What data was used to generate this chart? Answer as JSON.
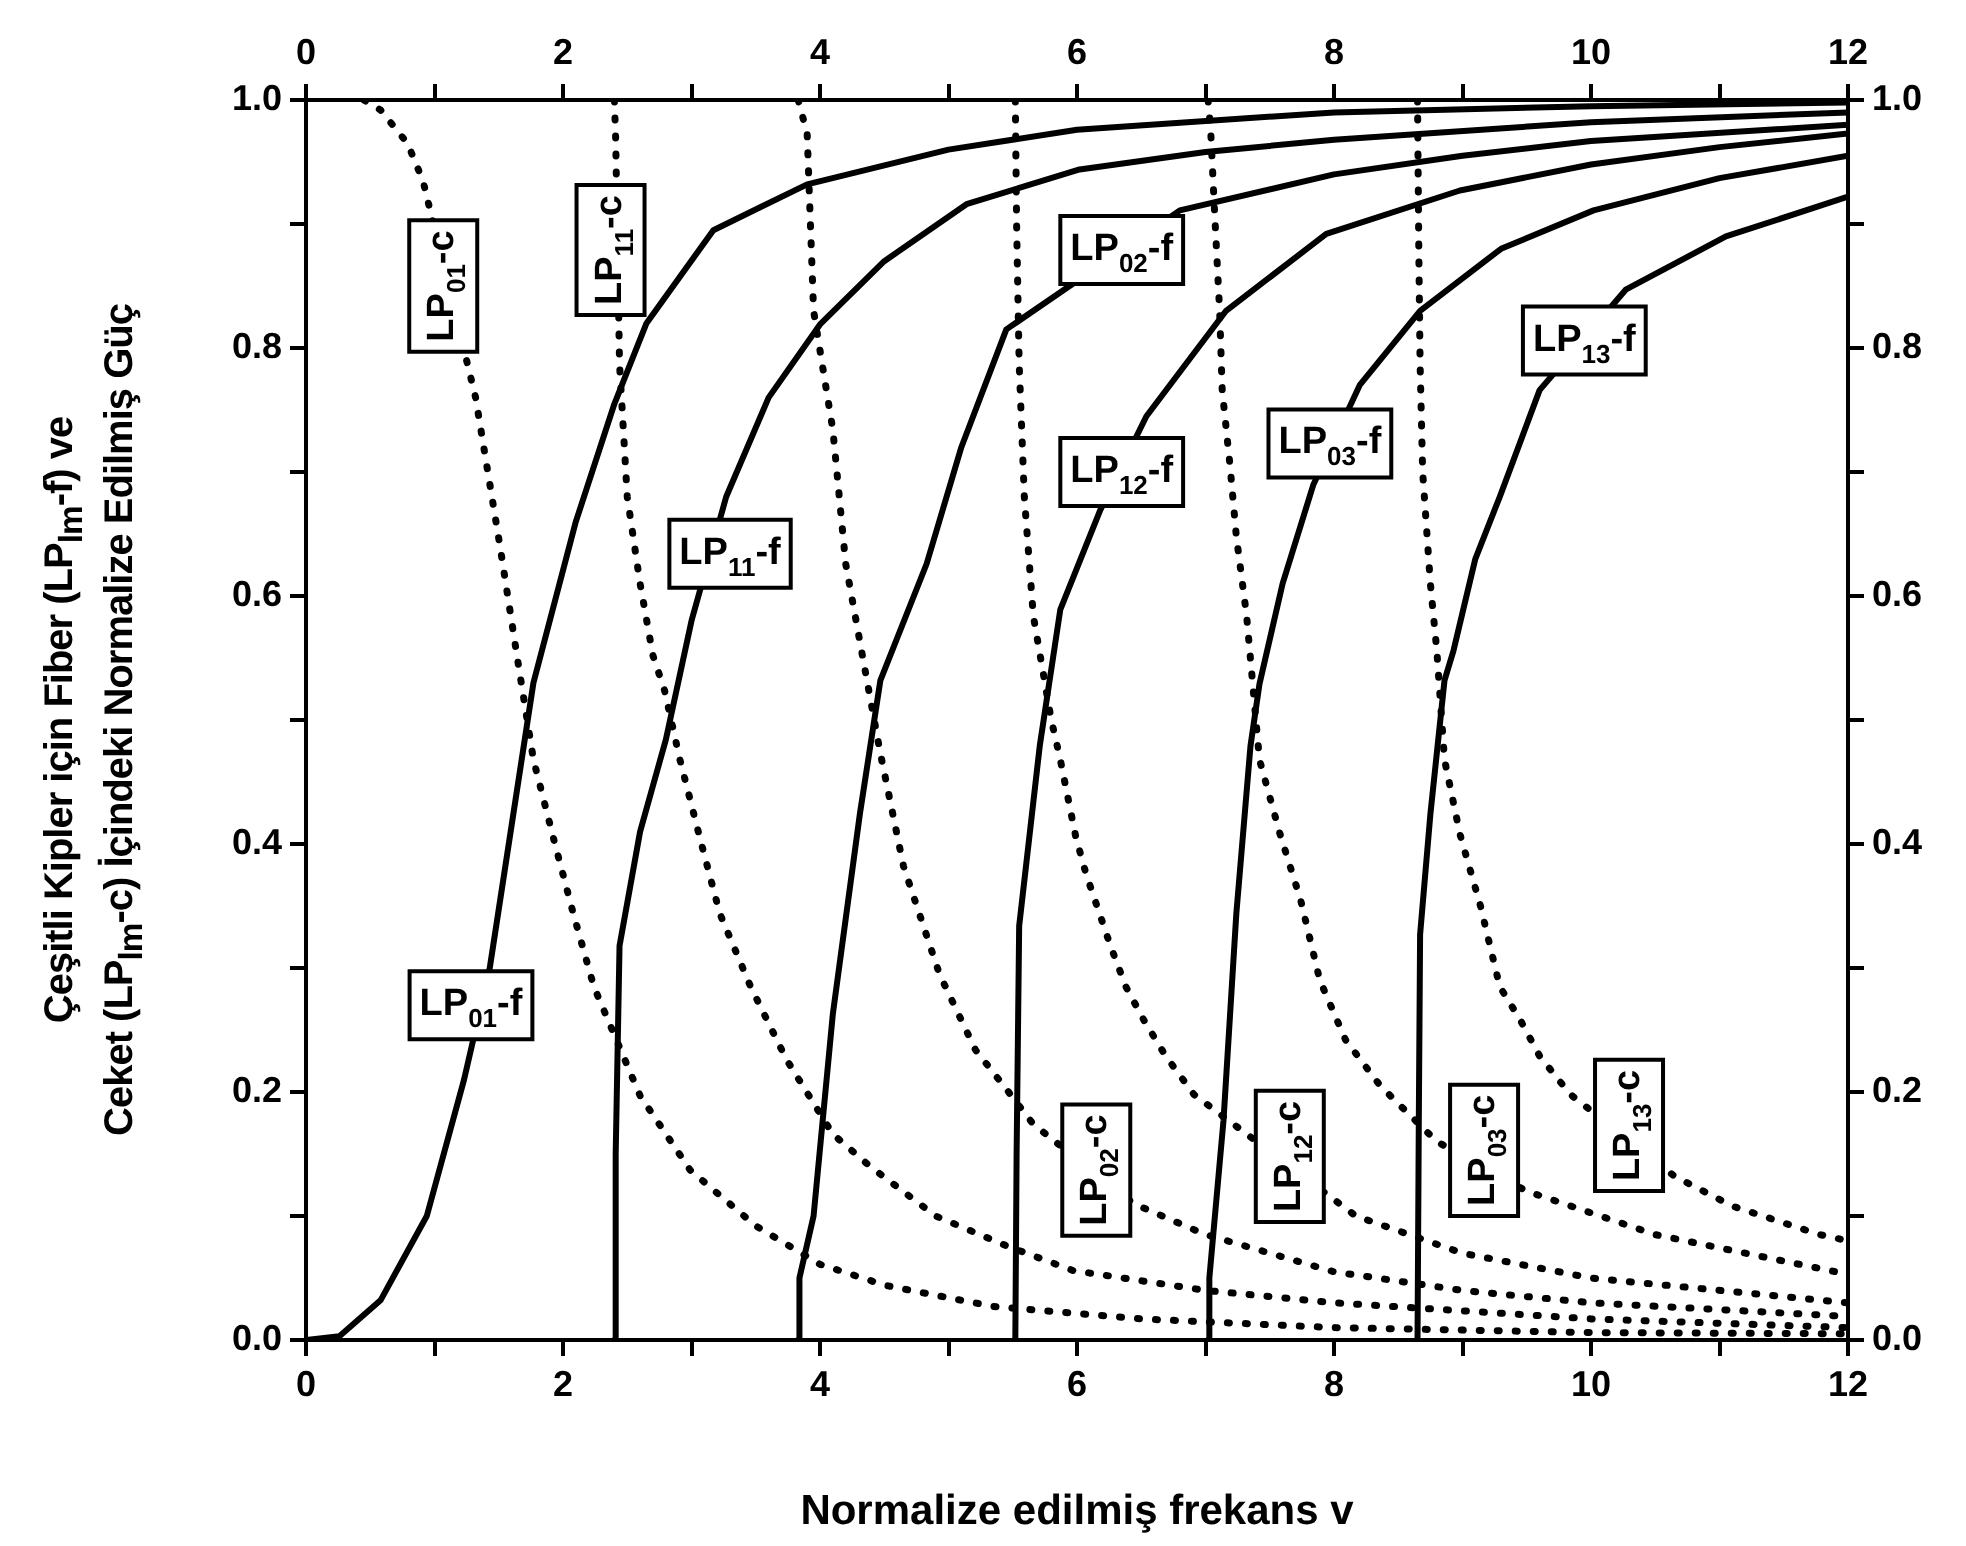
{
  "chart_data": {
    "type": "line",
    "xlabel": "Normalize edilmiş frekans v",
    "ylabel": "Çeşitli Kipler için Fiber (LP$_{lm}$-f) ve\nCeket (LP$_{lm}$-c) İçindeki Normalize Edilmiş Güç",
    "xlim": [
      0,
      12
    ],
    "xticks": [
      0,
      {
        "value": 1,
        "label": null
      },
      2,
      {
        "value": 3,
        "label": null
      },
      4,
      {
        "value": 5,
        "label": null
      },
      6,
      {
        "value": 7,
        "label": null
      },
      8,
      {
        "value": 9,
        "label": null
      },
      10,
      {
        "value": 11,
        "label": null
      },
      12
    ],
    "x2lim": [
      0,
      12
    ],
    "x2ticks": [
      0,
      {
        "value": 1,
        "label": null
      },
      2,
      {
        "value": 3,
        "label": null
      },
      4,
      {
        "value": 5,
        "label": null
      },
      6,
      {
        "value": 7,
        "label": null
      },
      8,
      {
        "value": 9,
        "label": null
      },
      10,
      {
        "value": 11,
        "label": null
      },
      12
    ],
    "ylim": [
      0,
      1
    ],
    "yticks": [
      {
        "value": 0,
        "label": "0.0"
      },
      {
        "value": 0.1,
        "label": null
      },
      0.2,
      {
        "value": 0.3,
        "label": null
      },
      0.4,
      {
        "value": 0.5,
        "label": null
      },
      0.6,
      {
        "value": 0.7,
        "label": null
      },
      0.8,
      {
        "value": 0.9,
        "label": null
      },
      {
        "value": 1,
        "label": "1.0"
      }
    ],
    "y2lim": [
      0,
      1
    ],
    "y2ticks": [
      {
        "value": 0,
        "label": "0.0"
      },
      {
        "value": 0.1,
        "label": null
      },
      0.2,
      {
        "value": 0.3,
        "label": null
      },
      0.4,
      {
        "value": 0.5,
        "label": null
      },
      0.6,
      {
        "value": 0.7,
        "label": null
      },
      0.8,
      {
        "value": 0.9,
        "label": null
      },
      {
        "value": 1,
        "label": "1.0"
      }
    ],
    "legend": false,
    "marker": "none",
    "series": [
      {
        "color": "#000000",
        "line_style": "solid",
        "x": [
          0,
          0.26,
          0.58,
          0.94,
          1.23,
          1.43,
          1.77,
          2.1,
          2.4,
          2.65,
          3.17,
          3.9,
          5,
          6,
          8,
          10,
          12
        ],
        "values": [
          0,
          0.003,
          0.032,
          0.1,
          0.21,
          0.3,
          0.53,
          0.66,
          0.755,
          0.82,
          0.895,
          0.932,
          0.96,
          0.976,
          0.99,
          0.995,
          0.998
        ]
      },
      {
        "color": "#000000",
        "line_style": "dotted",
        "x": [
          0.45,
          0.58,
          0.79,
          0.91,
          1.32,
          1.51,
          1.64,
          1.77,
          1.93,
          2.08,
          2.24,
          2.6,
          2.99,
          3.5,
          4,
          4.51,
          5.35,
          6.5,
          8,
          10,
          12
        ],
        "values": [
          1,
          0.992,
          0.965,
          0.935,
          0.76,
          0.64,
          0.553,
          0.468,
          0.403,
          0.344,
          0.285,
          0.197,
          0.137,
          0.092,
          0.061,
          0.044,
          0.027,
          0.017,
          0.01,
          0.006,
          0.005
        ]
      },
      {
        "color": "#000000",
        "line_style": "solid",
        "x": [
          2.4,
          2.41,
          2.44,
          2.6,
          2.8,
          3,
          3.27,
          3.6,
          4,
          4.5,
          5.14,
          6.02,
          7,
          8,
          10,
          12
        ],
        "values": [
          0,
          0.15,
          0.318,
          0.41,
          0.484,
          0.58,
          0.68,
          0.76,
          0.819,
          0.87,
          0.916,
          0.944,
          0.958,
          0.968,
          0.982,
          0.99
        ]
      },
      {
        "color": "#000000",
        "line_style": "dotted",
        "x": [
          2.4,
          2.41,
          2.44,
          2.5,
          2.6,
          2.7,
          2.79,
          2.91,
          3.07,
          3.22,
          3.46,
          3.74,
          4.1,
          4.39,
          4.9,
          5.45,
          5.97,
          7,
          8,
          10,
          12
        ],
        "values": [
          1,
          0.968,
          0.787,
          0.68,
          0.61,
          0.552,
          0.524,
          0.468,
          0.403,
          0.344,
          0.285,
          0.226,
          0.166,
          0.14,
          0.1,
          0.076,
          0.056,
          0.04,
          0.03,
          0.017,
          0.01
        ]
      },
      {
        "color": "#000000",
        "line_style": "solid",
        "x": [
          3.83,
          3.84,
          3.95,
          4.1,
          4.31,
          4.47,
          4.83,
          5.1,
          5.45,
          6.8,
          8,
          9,
          10,
          12
        ],
        "values": [
          0,
          0.05,
          0.1,
          0.263,
          0.424,
          0.532,
          0.626,
          0.72,
          0.815,
          0.911,
          0.94,
          0.955,
          0.967,
          0.98
        ]
      },
      {
        "color": "#000000",
        "line_style": "dotted",
        "x": [
          3.83,
          3.9,
          3.92,
          3.95,
          4.1,
          4.2,
          4.36,
          4.47,
          4.65,
          4.93,
          5.21,
          5.43,
          5.66,
          6.44,
          7,
          8,
          9,
          10,
          12
        ],
        "values": [
          1,
          0.973,
          0.916,
          0.83,
          0.734,
          0.626,
          0.535,
          0.473,
          0.382,
          0.295,
          0.234,
          0.205,
          0.174,
          0.11,
          0.085,
          0.055,
          0.04,
          0.03,
          0.019
        ]
      },
      {
        "color": "#000000",
        "line_style": "solid",
        "x": [
          5.52,
          5.53,
          5.55,
          5.71,
          5.87,
          6.18,
          6.54,
          7.16,
          7.94,
          8.98,
          10,
          11,
          12
        ],
        "values": [
          0,
          0.15,
          0.334,
          0.479,
          0.589,
          0.669,
          0.745,
          0.83,
          0.892,
          0.927,
          0.948,
          0.962,
          0.973
        ]
      },
      {
        "color": "#000000",
        "line_style": "dotted",
        "x": [
          5.52,
          5.53,
          5.55,
          5.59,
          5.66,
          5.8,
          5.87,
          5.99,
          6.07,
          6.26,
          6.38,
          6.52,
          6.69,
          6.91,
          8.17,
          9,
          10,
          12
        ],
        "values": [
          1,
          0.9,
          0.787,
          0.68,
          0.584,
          0.5,
          0.468,
          0.406,
          0.376,
          0.318,
          0.285,
          0.258,
          0.229,
          0.198,
          0.1,
          0.07,
          0.05,
          0.03
        ]
      },
      {
        "color": "#000000",
        "line_style": "solid",
        "x": [
          7.02,
          7.03,
          7.14,
          7.24,
          7.35,
          7.42,
          7.6,
          7.84,
          8.2,
          8.67,
          9.3,
          10.02,
          11,
          12
        ],
        "values": [
          0,
          0.05,
          0.177,
          0.344,
          0.479,
          0.529,
          0.61,
          0.69,
          0.77,
          0.83,
          0.88,
          0.911,
          0.937,
          0.955
        ]
      },
      {
        "color": "#000000",
        "line_style": "dotted",
        "x": [
          7.02,
          7.04,
          7.07,
          7.11,
          7.13,
          7.19,
          7.24,
          7.32,
          7.42,
          7.58,
          7.74,
          7.89,
          8.09,
          8.36,
          8.8,
          9.5,
          10.5,
          12
        ],
        "values": [
          1,
          0.976,
          0.911,
          0.83,
          0.766,
          0.706,
          0.648,
          0.584,
          0.468,
          0.408,
          0.355,
          0.29,
          0.242,
          0.205,
          0.16,
          0.12,
          0.085,
          0.053
        ]
      },
      {
        "color": "#000000",
        "line_style": "solid",
        "x": [
          8.65,
          8.66,
          8.67,
          8.75,
          8.86,
          8.93,
          9.1,
          9.29,
          9.6,
          10.27,
          11.05,
          12
        ],
        "values": [
          0,
          0.177,
          0.327,
          0.424,
          0.532,
          0.556,
          0.63,
          0.68,
          0.766,
          0.847,
          0.89,
          0.922
        ]
      },
      {
        "color": "#000000",
        "line_style": "dotted",
        "x": [
          8.65,
          8.66,
          8.67,
          8.69,
          8.75,
          8.8,
          8.86,
          8.98,
          9.14,
          9.29,
          9.45,
          9.6,
          9.84,
          10.65,
          11.1,
          11.78,
          12
        ],
        "values": [
          1,
          0.879,
          0.787,
          0.7,
          0.61,
          0.556,
          0.468,
          0.408,
          0.35,
          0.285,
          0.258,
          0.229,
          0.198,
          0.132,
          0.108,
          0.085,
          0.08
        ]
      }
    ],
    "annotations": [
      "LP$_{01}$-c",
      "LP$_{11}$-c",
      "LP$_{11}$-f",
      "LP$_{02}$-f",
      "LP$_{12}$-f",
      "LP$_{03}$-f",
      "LP$_{13}$-f",
      "LP$_{01}$-f",
      "LP$_{02}$-c",
      "LP$_{12}$-c",
      "LP$_{03}$-c",
      "LP$_{13}$-c"
    ]
  }
}
